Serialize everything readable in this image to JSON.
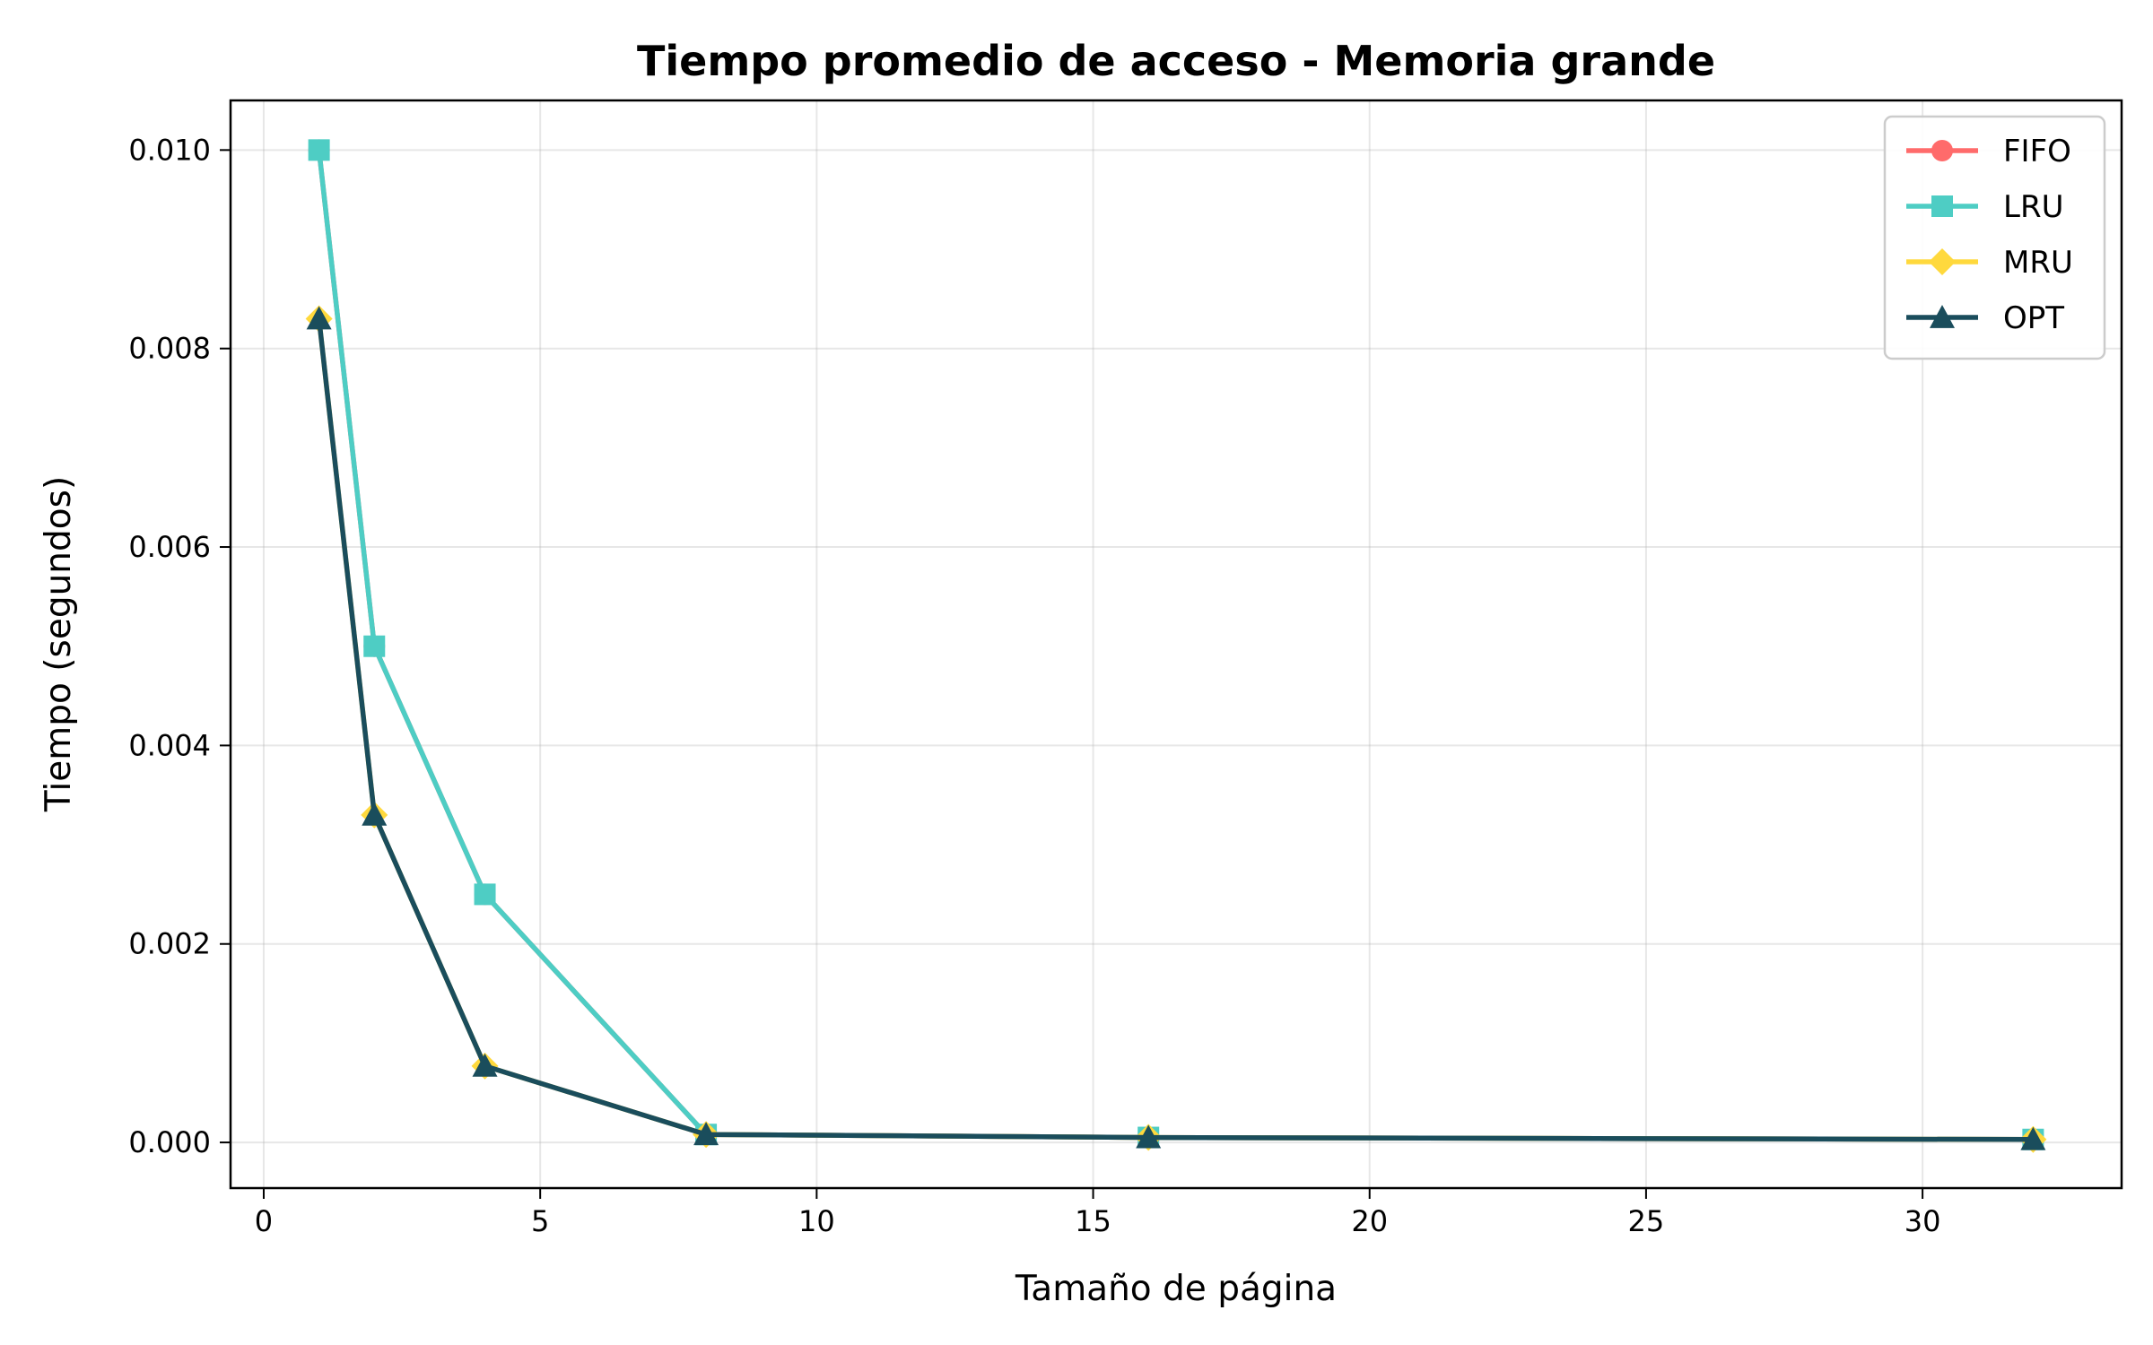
{
  "chart_data": {
    "type": "line",
    "title": "Tiempo promedio de acceso - Memoria grande",
    "xlabel": "Tamaño de página",
    "ylabel": "Tiempo (segundos)",
    "xlim": [
      -0.6,
      33.6
    ],
    "ylim": [
      -0.00046,
      0.0105
    ],
    "xticks": [
      0,
      5,
      10,
      15,
      20,
      25,
      30
    ],
    "xtick_labels": [
      "0",
      "5",
      "10",
      "15",
      "20",
      "25",
      "30"
    ],
    "yticks": [
      0.0,
      0.002,
      0.004,
      0.006,
      0.008,
      0.01
    ],
    "ytick_labels": [
      "0.000",
      "0.002",
      "0.004",
      "0.006",
      "0.008",
      "0.010"
    ],
    "grid": true,
    "legend_position": "top-right",
    "x": [
      1,
      2,
      4,
      8,
      16,
      32
    ],
    "series": [
      {
        "name": "FIFO",
        "color": "#ff6b6b",
        "marker": "circle",
        "values": [
          0.01,
          0.005,
          0.0025,
          8e-05,
          5e-05,
          3e-05
        ]
      },
      {
        "name": "LRU",
        "color": "#4ecdc4",
        "marker": "square",
        "values": [
          0.01,
          0.005,
          0.0025,
          8e-05,
          5e-05,
          3e-05
        ]
      },
      {
        "name": "MRU",
        "color": "#ffd93d",
        "marker": "diamond",
        "values": [
          0.0083,
          0.0033,
          0.00077,
          8e-05,
          5e-05,
          3e-05
        ]
      },
      {
        "name": "OPT",
        "color": "#1a4d5c",
        "marker": "triangle",
        "values": [
          0.0083,
          0.0033,
          0.00077,
          8e-05,
          5e-05,
          3e-05
        ]
      }
    ]
  }
}
